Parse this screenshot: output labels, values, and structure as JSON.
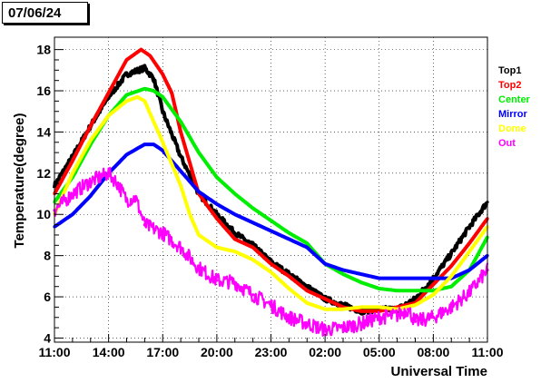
{
  "header": {
    "date": "07/06/24"
  },
  "chart_data": {
    "type": "scatter",
    "title": "",
    "xlabel": "Universal Time",
    "ylabel": "Temperature(degree)",
    "xlim": [
      0,
      24
    ],
    "ylim": [
      3.8,
      18.6
    ],
    "x_ticks": [
      {
        "x": 0,
        "label": "11:00"
      },
      {
        "x": 3,
        "label": "14:00"
      },
      {
        "x": 6,
        "label": "17:00"
      },
      {
        "x": 9,
        "label": "20:00"
      },
      {
        "x": 12,
        "label": "23:00"
      },
      {
        "x": 15,
        "label": "02:00"
      },
      {
        "x": 18,
        "label": "05:00"
      },
      {
        "x": 21,
        "label": "08:00"
      },
      {
        "x": 24,
        "label": "11:00"
      }
    ],
    "y_ticks": [
      4,
      6,
      8,
      10,
      12,
      14,
      16,
      18
    ],
    "grid": true,
    "legend_position": "right",
    "series": [
      {
        "name": "Top1",
        "color": "#000000",
        "x": [
          0,
          1,
          2,
          3,
          4,
          5,
          5.5,
          6,
          7,
          8,
          9,
          10,
          11,
          12,
          13,
          14,
          15,
          16,
          17,
          18,
          19,
          20,
          21,
          22,
          23,
          24
        ],
        "y": [
          11.4,
          12.8,
          14.3,
          15.7,
          16.8,
          17.1,
          16.6,
          15.0,
          12.8,
          11.0,
          10.0,
          9.1,
          8.5,
          7.7,
          7.1,
          6.5,
          5.9,
          5.6,
          5.3,
          5.4,
          5.4,
          5.9,
          6.9,
          8.1,
          9.4,
          10.6
        ]
      },
      {
        "name": "Top2",
        "color": "#ff0000",
        "x": [
          0,
          1,
          2,
          3,
          4,
          4.8,
          5.3,
          6,
          6.5,
          7,
          8,
          9,
          10,
          11,
          12,
          13,
          14,
          15,
          16,
          17,
          18,
          19,
          20,
          21,
          22,
          23,
          24
        ],
        "y": [
          11.0,
          12.6,
          14.3,
          15.9,
          17.5,
          18.0,
          17.7,
          16.8,
          15.9,
          14.0,
          11.0,
          9.8,
          8.8,
          8.4,
          7.6,
          7.0,
          6.3,
          5.9,
          5.5,
          5.3,
          5.3,
          5.5,
          5.7,
          6.6,
          7.5,
          8.6,
          9.8
        ]
      },
      {
        "name": "Center",
        "color": "#00ee00",
        "x": [
          0,
          1,
          2,
          3,
          4,
          5,
          5.5,
          6,
          7,
          8,
          9,
          10,
          11,
          12,
          13,
          14,
          15,
          16,
          17,
          18,
          19,
          20,
          21,
          22,
          23,
          24
        ],
        "y": [
          10.6,
          11.8,
          13.4,
          14.8,
          15.8,
          16.1,
          16.0,
          15.7,
          14.5,
          13.0,
          11.8,
          11.0,
          10.3,
          9.7,
          9.1,
          8.6,
          7.6,
          7.1,
          6.7,
          6.4,
          6.3,
          6.3,
          6.3,
          6.5,
          7.3,
          8.9
        ]
      },
      {
        "name": "Mirror",
        "color": "#0000ff",
        "x": [
          0,
          1,
          2,
          3,
          4,
          5,
          5.5,
          6,
          7,
          8,
          9,
          10,
          11,
          12,
          13,
          14,
          15,
          16,
          17,
          18,
          19,
          20,
          21,
          22,
          23,
          24
        ],
        "y": [
          9.4,
          10.0,
          10.9,
          12.0,
          12.9,
          13.4,
          13.4,
          13.1,
          12.1,
          11.1,
          10.5,
          10.0,
          9.6,
          9.2,
          8.8,
          8.4,
          7.6,
          7.3,
          7.1,
          6.9,
          6.9,
          6.9,
          6.9,
          6.9,
          7.3,
          8.0
        ]
      },
      {
        "name": "Dome",
        "color": "#ffff00",
        "x": [
          0,
          1,
          2,
          3,
          4,
          4.6,
          5,
          6,
          7,
          7.5,
          8,
          9,
          10,
          11,
          12,
          13,
          14,
          15,
          16,
          17,
          18,
          19,
          20,
          21,
          22,
          23,
          24
        ],
        "y": [
          10.0,
          12.0,
          13.6,
          14.8,
          15.5,
          15.7,
          15.5,
          13.5,
          11.4,
          10.0,
          9.0,
          8.4,
          8.2,
          7.8,
          7.2,
          6.4,
          5.7,
          5.4,
          5.4,
          5.5,
          5.5,
          5.4,
          5.6,
          6.1,
          7.0,
          8.2,
          9.4
        ]
      },
      {
        "name": "Out",
        "color": "#ff00ff",
        "x": [
          0,
          1,
          2,
          3,
          3.5,
          4,
          4.5,
          5,
          5.5,
          6,
          7,
          8,
          9,
          10,
          11,
          12,
          13,
          14,
          15,
          16,
          17,
          18,
          19,
          19.6,
          20,
          21,
          22,
          23,
          24
        ],
        "y": [
          10.2,
          11.0,
          11.6,
          12.0,
          11.5,
          10.7,
          10.8,
          9.5,
          9.3,
          9.1,
          8.4,
          7.4,
          6.8,
          6.7,
          6.1,
          5.6,
          5.0,
          4.7,
          4.4,
          4.5,
          4.7,
          5.0,
          5.1,
          5.4,
          4.8,
          5.0,
          5.5,
          6.2,
          7.3
        ]
      }
    ]
  }
}
